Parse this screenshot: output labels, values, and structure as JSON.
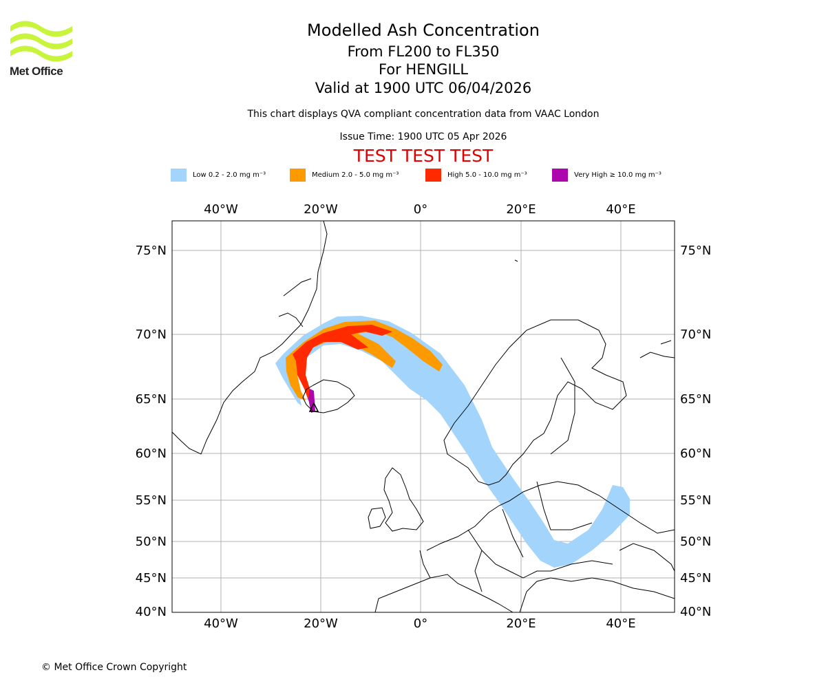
{
  "logo": {
    "text": "Met Office",
    "color": "#c8f53c"
  },
  "header": {
    "title": "Modelled Ash Concentration",
    "level": "From FL200 to FL350",
    "volcano": "For HENGILL",
    "valid": "Valid at 1900 UTC 06/04/2026",
    "description": "This chart displays QVA compliant concentration data from VAAC London",
    "issue": "Issue Time: 1900 UTC 05 Apr 2026",
    "test_banner": "TEST TEST TEST"
  },
  "legend": [
    {
      "label": "Low 0.2 - 2.0 mg m⁻³",
      "color": "#a3d4fb"
    },
    {
      "label": "Medium 2.0 - 5.0 mg m⁻³",
      "color": "#fd9a00"
    },
    {
      "label": "High 5.0 - 10.0 mg m⁻³",
      "color": "#ff2a00"
    },
    {
      "label": "Very High ≥ 10.0 mg m⁻³",
      "color": "#ad06ae"
    }
  ],
  "map": {
    "lon_ticks": [
      "40°W",
      "20°W",
      "0°",
      "20°E",
      "40°E"
    ],
    "lat_ticks": [
      "75°N",
      "70°N",
      "65°N",
      "60°N",
      "55°N",
      "50°N",
      "45°N",
      "40°N"
    ]
  },
  "footer": {
    "copyright": "© Met Office Crown Copyright"
  }
}
